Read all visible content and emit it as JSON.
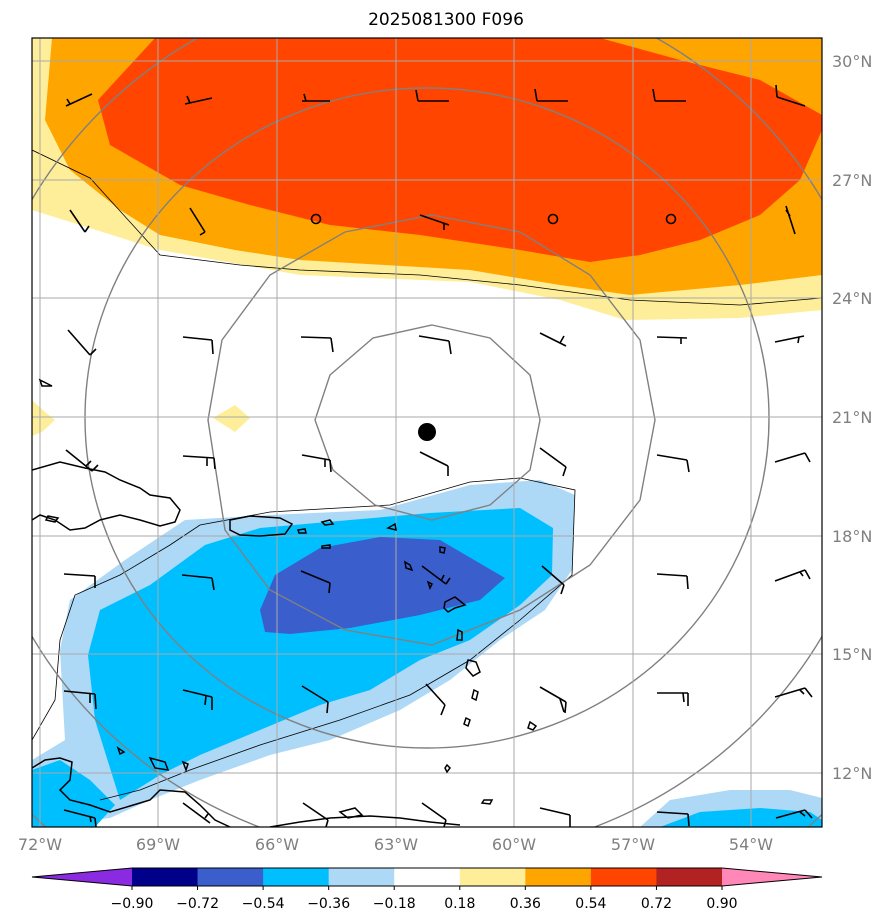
{
  "title": "2025081300 F096",
  "map": {
    "lon_labels": [
      "72°W",
      "69°W",
      "66°W",
      "63°W",
      "60°W",
      "57°W",
      "54°W"
    ],
    "lat_labels": [
      "30°N",
      "27°N",
      "24°N",
      "21°N",
      "18°N",
      "15°N",
      "12°N"
    ],
    "lon_min": -72,
    "lon_max": -52,
    "lat_min": 10.6,
    "lat_max": 30.6,
    "center_marker": {
      "lon": -62.3,
      "lat": 20.6
    }
  },
  "colorbar": {
    "tick_labels": [
      "−0.90",
      "−0.72",
      "−0.54",
      "−0.36",
      "−0.18",
      "0.18",
      "0.36",
      "0.54",
      "0.72",
      "0.90"
    ],
    "colors": [
      "#8a2be2",
      "#00008b",
      "#3a5fcd",
      "#00bfff",
      "#add8f6",
      "#ffffff",
      "#ffee99",
      "#ffa500",
      "#ff4500",
      "#b22222",
      "#ff88b8"
    ]
  }
}
